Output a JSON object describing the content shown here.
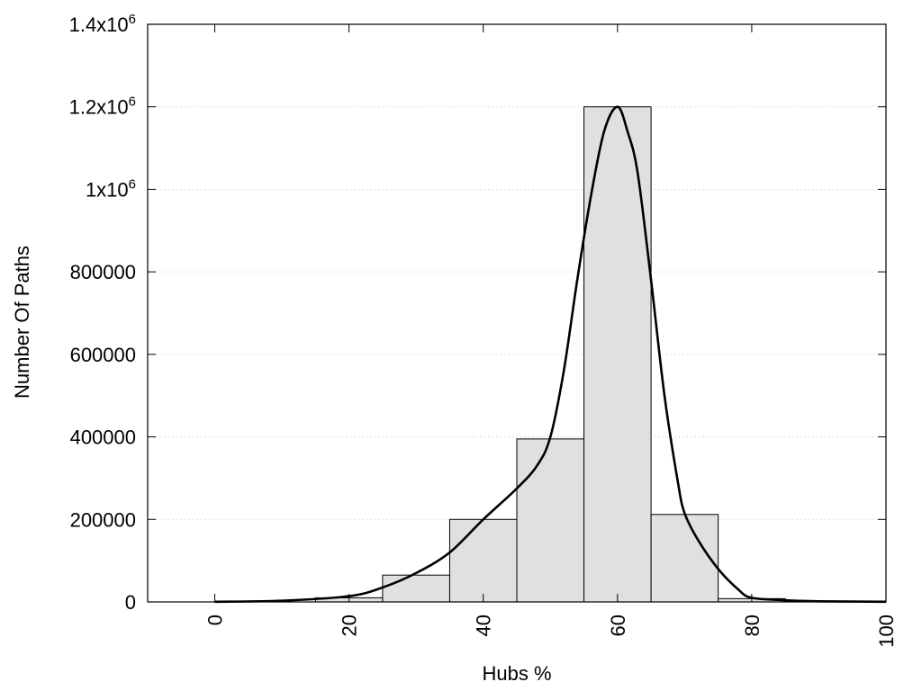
{
  "chart_data": {
    "type": "bar",
    "title": "",
    "xlabel": "Hubs %",
    "ylabel": "Number Of Paths",
    "xlim": [
      -10,
      100
    ],
    "ylim": [
      0,
      1400000
    ],
    "grid": "horizontal-dotted",
    "legend": "none",
    "bar_fill": "#e0e0e0",
    "bar_stroke": "#000000",
    "curve_color": "#000000",
    "x_ticks": [
      0,
      20,
      40,
      60,
      80,
      100
    ],
    "x_tick_labels": [
      "0",
      "20",
      "40",
      "60",
      "80",
      "100"
    ],
    "y_ticks": [
      0,
      200000,
      400000,
      600000,
      800000,
      1000000,
      1200000,
      1400000
    ],
    "y_tick_labels": [
      {
        "base": "0",
        "exp": ""
      },
      {
        "base": "200000",
        "exp": ""
      },
      {
        "base": "400000",
        "exp": ""
      },
      {
        "base": "600000",
        "exp": ""
      },
      {
        "base": "800000",
        "exp": ""
      },
      {
        "base": "1x10",
        "exp": "6"
      },
      {
        "base": "1.2x10",
        "exp": "6"
      },
      {
        "base": "1.4x10",
        "exp": "6"
      }
    ],
    "bins": [
      {
        "center": 20,
        "value": 10000
      },
      {
        "center": 30,
        "value": 65000
      },
      {
        "center": 40,
        "value": 200000
      },
      {
        "center": 50,
        "value": 395000
      },
      {
        "center": 60,
        "value": 1200000
      },
      {
        "center": 70,
        "value": 212000
      },
      {
        "center": 80,
        "value": 8000
      }
    ],
    "bin_width": 10,
    "curve": [
      {
        "x": 0,
        "y": 500
      },
      {
        "x": 10,
        "y": 3000
      },
      {
        "x": 20,
        "y": 14000
      },
      {
        "x": 25,
        "y": 35000
      },
      {
        "x": 30,
        "y": 70000
      },
      {
        "x": 35,
        "y": 120000
      },
      {
        "x": 40,
        "y": 200000
      },
      {
        "x": 45,
        "y": 275000
      },
      {
        "x": 48,
        "y": 330000
      },
      {
        "x": 50,
        "y": 400000
      },
      {
        "x": 52,
        "y": 560000
      },
      {
        "x": 54,
        "y": 780000
      },
      {
        "x": 56,
        "y": 980000
      },
      {
        "x": 58,
        "y": 1140000
      },
      {
        "x": 60,
        "y": 1200000
      },
      {
        "x": 61.5,
        "y": 1140000
      },
      {
        "x": 63,
        "y": 1040000
      },
      {
        "x": 65,
        "y": 780000
      },
      {
        "x": 67,
        "y": 500000
      },
      {
        "x": 69,
        "y": 290000
      },
      {
        "x": 70,
        "y": 215000
      },
      {
        "x": 72,
        "y": 150000
      },
      {
        "x": 75,
        "y": 80000
      },
      {
        "x": 78,
        "y": 30000
      },
      {
        "x": 80,
        "y": 10000
      },
      {
        "x": 85,
        "y": 4000
      },
      {
        "x": 90,
        "y": 1500
      },
      {
        "x": 100,
        "y": 500
      }
    ]
  }
}
